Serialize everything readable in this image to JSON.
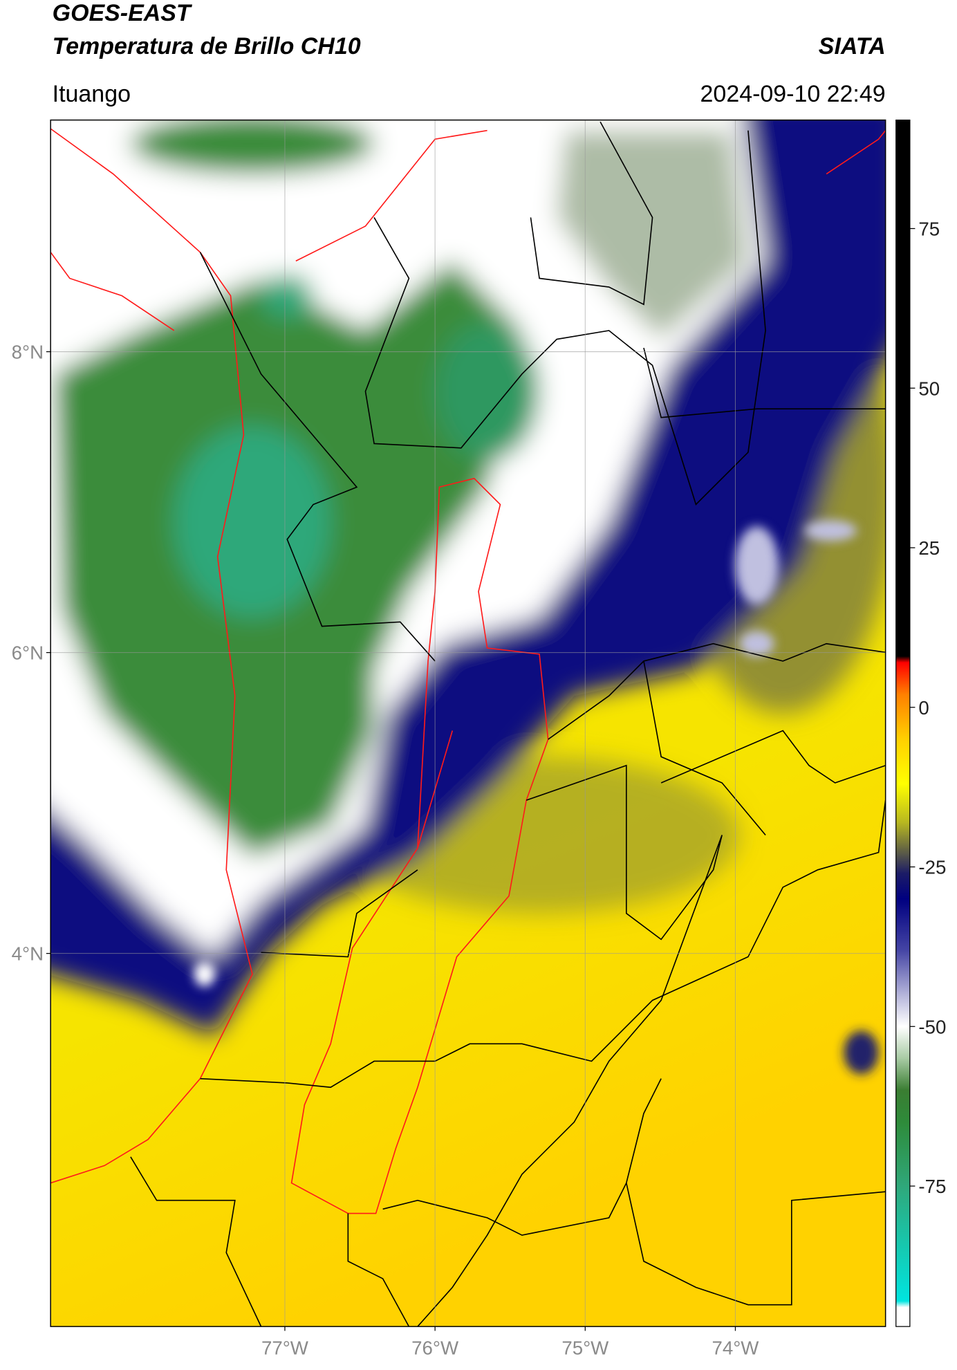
{
  "chart_data": {
    "type": "map",
    "title": "GOES-EAST",
    "subtitle": "Temperatura de Brillo CH10",
    "source": "SIATA",
    "location": "Ituango",
    "timestamp": "2024-09-10 22:49",
    "xlim": [
      -78.56,
      -73.0
    ],
    "ylim": [
      1.52,
      9.54
    ],
    "xticks": [
      {
        "value": -77,
        "label": "77°W"
      },
      {
        "value": -76,
        "label": "76°W"
      },
      {
        "value": -75,
        "label": "75°W"
      },
      {
        "value": -74,
        "label": "74°W"
      }
    ],
    "yticks": [
      {
        "value": 8,
        "label": "8°N"
      },
      {
        "value": 6,
        "label": "6°N"
      },
      {
        "value": 4,
        "label": "4°N"
      }
    ],
    "grid": true,
    "clim": [
      -97,
      92
    ],
    "cticks": [
      75,
      50,
      25,
      0,
      -25,
      -50,
      -75
    ],
    "colormap": [
      {
        "value": -97,
        "color": "#ffffff"
      },
      {
        "value": -94,
        "color": "#ffffff"
      },
      {
        "value": -93,
        "color": "#00e5e0"
      },
      {
        "value": -75,
        "color": "#2fa87a"
      },
      {
        "value": -65,
        "color": "#2e8b3a"
      },
      {
        "value": -60,
        "color": "#3a7d32"
      },
      {
        "value": -55,
        "color": "#a8cba4"
      },
      {
        "value": -50,
        "color": "#ffffff"
      },
      {
        "value": -45,
        "color": "#b4b4da"
      },
      {
        "value": -38,
        "color": "#4444a4"
      },
      {
        "value": -30,
        "color": "#000080"
      },
      {
        "value": -26,
        "color": "#1c1c66"
      },
      {
        "value": -22,
        "color": "#6a6a40"
      },
      {
        "value": -18,
        "color": "#b8b820"
      },
      {
        "value": -12,
        "color": "#ffff00"
      },
      {
        "value": -5,
        "color": "#ffd000"
      },
      {
        "value": 2,
        "color": "#ff8000"
      },
      {
        "value": 7,
        "color": "#ff0000"
      },
      {
        "value": 8,
        "color": "#000000"
      },
      {
        "value": 92,
        "color": "#000000"
      }
    ]
  }
}
